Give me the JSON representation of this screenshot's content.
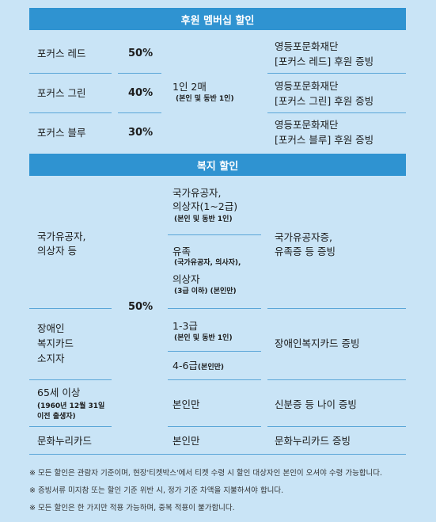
{
  "sponsor": {
    "title": "후원 멤버십 할인",
    "rows": [
      {
        "name": "포커스 레드",
        "rate": "50%",
        "proof1": "영등포문화재단",
        "proof2": "[포커스 레드] 후원 증빙"
      },
      {
        "name": "포커스 그린",
        "rate": "40%",
        "proof1": "영등포문화재단",
        "proof2": "[포커스 그린] 후원 증빙"
      },
      {
        "name": "포커스 블루",
        "rate": "30%",
        "proof1": "영등포문화재단",
        "proof2": "[포커스 블루] 후원 증빙"
      }
    ],
    "target": "1인 2매",
    "target_note": "(본인 및 동반 1인)"
  },
  "welfare": {
    "title": "복지 할인",
    "rate": "50%",
    "merit": {
      "name_l1": "국가유공자,",
      "name_l2": "의상자 등",
      "t1_l1": "국가유공자,",
      "t1_l2": "의상자(1~2급)",
      "t1_note": "(본인 및 동반 1인)",
      "t2_l1": "유족",
      "t2_note": "(국가유공자, 의사자),",
      "t3_l1": "의상자",
      "t3_note": "(3급 이하) (본인만)",
      "proof1": "국가유공자증,",
      "proof2": "유족증 등 증빙"
    },
    "disabled": {
      "name_l1": "장애인",
      "name_l2": "복지카드",
      "name_l3": "소지자",
      "t1": "1-3급",
      "t1_note": "(본인 및 동반 1인)",
      "t2": "4-6급",
      "t2_note": "(본인만)",
      "proof": "장애인복지카드 증빙"
    },
    "senior": {
      "name": "65세 이상",
      "note_l1": "(1960년 12월 31일",
      "note_l2": "이전 출생자)",
      "target": "본인만",
      "proof": "신분증 등 나이 증빙"
    },
    "culture": {
      "name": "문화누리카드",
      "target": "본인만",
      "proof": "문화누리카드 증빙"
    }
  },
  "notes": [
    "※ 모든 할인은 관람자 기준이며, 현장'티켓박스'에서 티켓 수령 시 할인 대상자인 본인이 오셔야 수령 가능합니다.",
    "※ 증빙서류 미지참 또는 할인 기준 위반 시, 정가 기준 차액을 지불하셔야 합니다.",
    "※ 모든 할인은 한 가지만 적용 가능하며, 중복 적용이 불가합니다."
  ]
}
